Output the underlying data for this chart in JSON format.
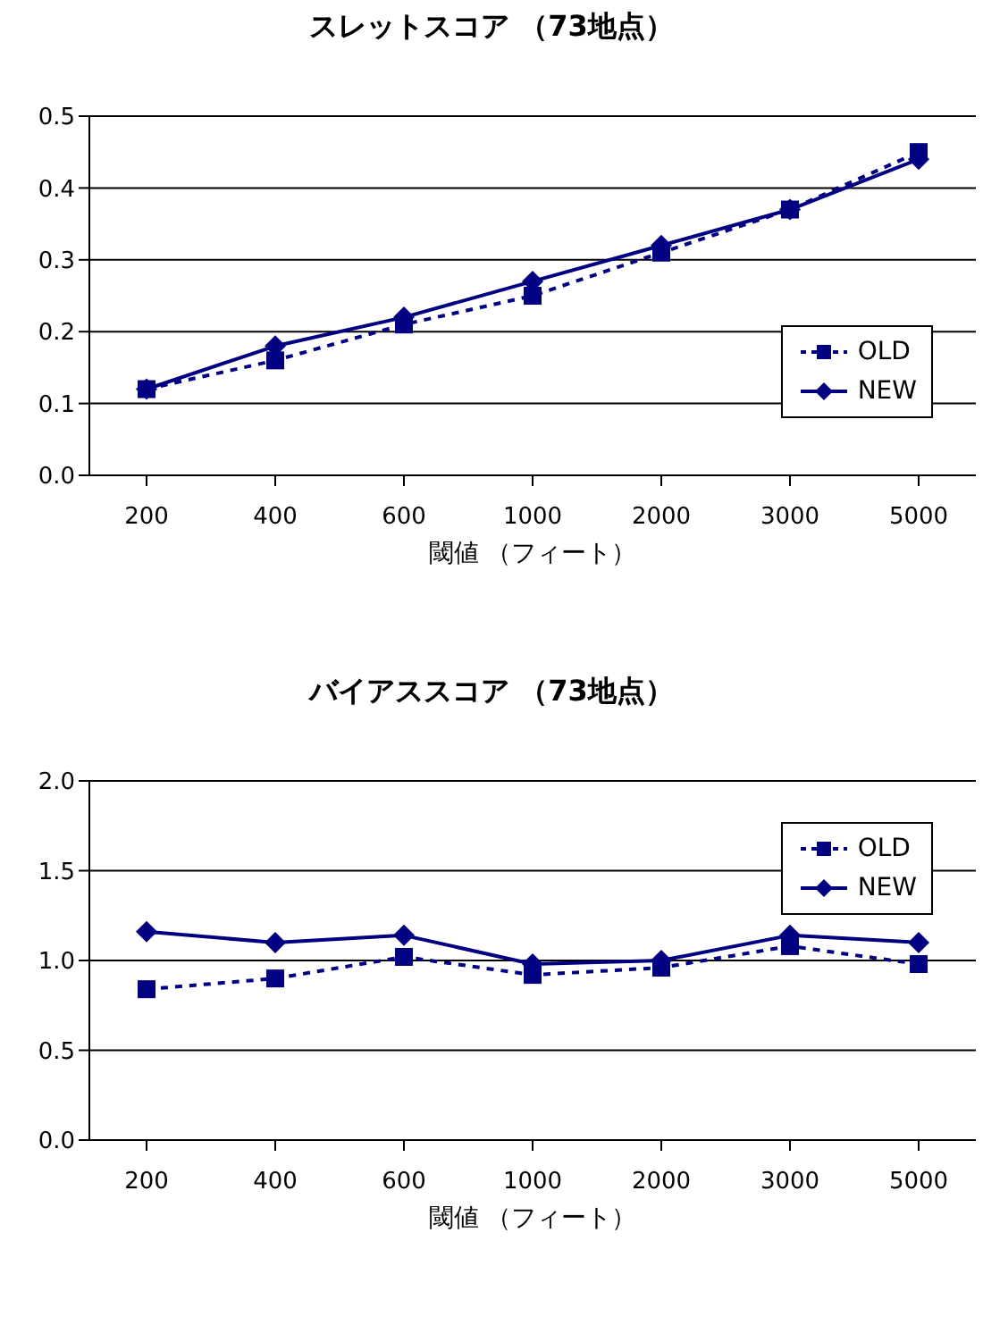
{
  "chart_data": [
    {
      "type": "line",
      "title": "スレットスコア （73地点）",
      "xlabel": "閾値 （フィート）",
      "categories": [
        "200",
        "400",
        "600",
        "1000",
        "2000",
        "3000",
        "5000"
      ],
      "series": [
        {
          "name": "OLD",
          "color": "#000080",
          "marker": "square",
          "line_style": "dashed",
          "values": [
            0.12,
            0.16,
            0.21,
            0.25,
            0.31,
            0.37,
            0.45
          ]
        },
        {
          "name": "NEW",
          "color": "#000080",
          "marker": "diamond",
          "line_style": "solid",
          "values": [
            0.12,
            0.18,
            0.22,
            0.27,
            0.32,
            0.37,
            0.44
          ]
        }
      ],
      "ylim": [
        0,
        0.5
      ],
      "yticks": [
        {
          "value": 0,
          "label": "0.0"
        },
        0.1,
        0.2,
        0.3,
        0.4,
        0.5
      ],
      "grid": "y",
      "legend": "right"
    },
    {
      "type": "line",
      "title": "バイアススコア （73地点）",
      "xlabel": "閾値 （フィート）",
      "categories": [
        "200",
        "400",
        "600",
        "1000",
        "2000",
        "3000",
        "5000"
      ],
      "series": [
        {
          "name": "OLD",
          "color": "#000080",
          "marker": "square",
          "line_style": "dashed",
          "values": [
            0.84,
            0.9,
            1.02,
            0.92,
            0.96,
            1.08,
            0.98
          ]
        },
        {
          "name": "NEW",
          "color": "#000080",
          "marker": "diamond",
          "line_style": "solid",
          "values": [
            1.16,
            1.1,
            1.14,
            0.98,
            1.0,
            1.14,
            1.1
          ]
        }
      ],
      "ylim": [
        0,
        2
      ],
      "yticks": [
        {
          "value": 0,
          "label": "0.0"
        },
        {
          "value": 0.5,
          "label": "0.5"
        },
        {
          "value": 1,
          "label": "1.0"
        },
        {
          "value": 1.5,
          "label": "1.5"
        },
        {
          "value": 2,
          "label": "2.0"
        }
      ],
      "grid": "y",
      "legend": "top right"
    }
  ]
}
